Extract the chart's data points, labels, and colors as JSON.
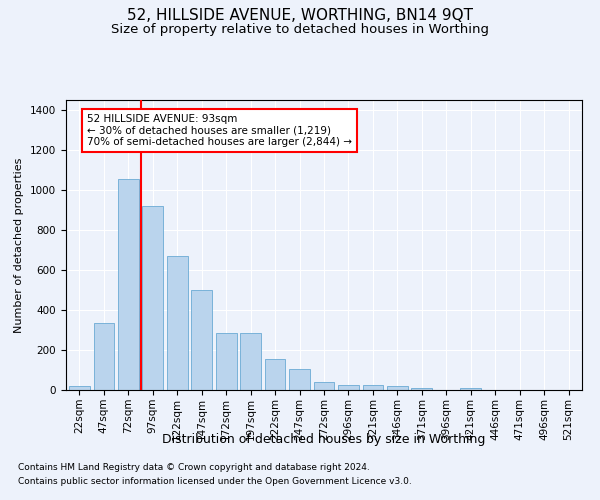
{
  "title": "52, HILLSIDE AVENUE, WORTHING, BN14 9QT",
  "subtitle": "Size of property relative to detached houses in Worthing",
  "xlabel": "Distribution of detached houses by size in Worthing",
  "ylabel": "Number of detached properties",
  "footnote1": "Contains HM Land Registry data © Crown copyright and database right 2024.",
  "footnote2": "Contains public sector information licensed under the Open Government Licence v3.0.",
  "bar_labels": [
    "22sqm",
    "47sqm",
    "72sqm",
    "97sqm",
    "122sqm",
    "147sqm",
    "172sqm",
    "197sqm",
    "222sqm",
    "247sqm",
    "272sqm",
    "296sqm",
    "321sqm",
    "346sqm",
    "371sqm",
    "396sqm",
    "421sqm",
    "446sqm",
    "471sqm",
    "496sqm",
    "521sqm"
  ],
  "bar_values": [
    22,
    335,
    1055,
    920,
    670,
    500,
    285,
    285,
    155,
    103,
    38,
    25,
    25,
    18,
    12,
    0,
    12,
    0,
    0,
    0,
    0
  ],
  "bar_color": "#bad4ed",
  "bar_edgecolor": "#6aaad4",
  "vline_x_index": 2.5,
  "vline_color": "red",
  "annotation_text": "52 HILLSIDE AVENUE: 93sqm\n← 30% of detached houses are smaller (1,219)\n70% of semi-detached houses are larger (2,844) →",
  "annotation_box_color": "white",
  "annotation_box_edgecolor": "red",
  "ylim": [
    0,
    1450
  ],
  "background_color": "#edf2fb",
  "grid_color": "white",
  "title_fontsize": 11,
  "subtitle_fontsize": 9.5,
  "xlabel_fontsize": 9,
  "ylabel_fontsize": 8,
  "tick_fontsize": 7.5,
  "footnote_fontsize": 6.5
}
